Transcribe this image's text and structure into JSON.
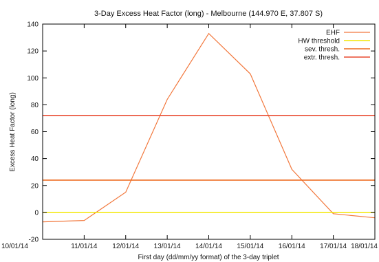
{
  "chart_data": {
    "type": "line",
    "title": "3-Day Excess Heat Factor (long) - Melbourne (144.970 E, 37.807 S)",
    "xlabel": "First day (dd/mm/yy format) of the 3-day triplet",
    "ylabel": "Excess Heat Factor (long)",
    "categories": [
      "10/01/14",
      "11/01/14",
      "12/01/14",
      "13/01/14",
      "14/01/14",
      "15/01/14",
      "16/01/14",
      "17/01/14",
      "18/01/14"
    ],
    "ylim": [
      -20,
      140
    ],
    "yticks": [
      "-20",
      "0",
      "20",
      "40",
      "60",
      "80",
      "100",
      "120",
      "140"
    ],
    "grid": false,
    "legend_position": "top-right",
    "series": [
      {
        "name": "EHF",
        "color": "#f2783d",
        "values": [
          -7,
          -6,
          15,
          84,
          133,
          103,
          32,
          -1,
          -4
        ]
      },
      {
        "name": "HW threshold",
        "color": "#f2e600",
        "constant": 0
      },
      {
        "name": "sev. thresh.",
        "color": "#ee6a1f",
        "constant": 24
      },
      {
        "name": "extr. thresh.",
        "color": "#e8482e",
        "constant": 72
      }
    ]
  }
}
